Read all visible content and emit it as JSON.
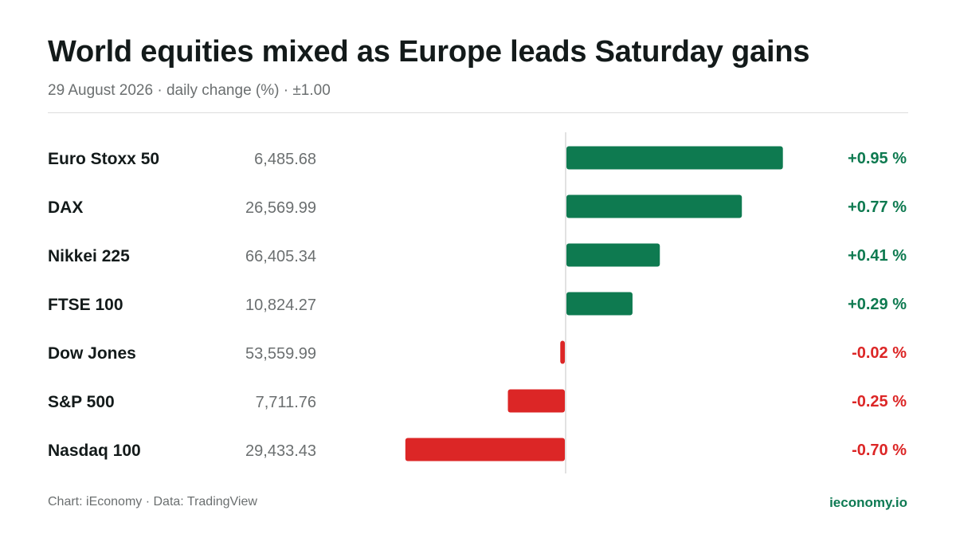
{
  "header": {
    "title": "World equities mixed as Europe leads Saturday gains",
    "subtitle": "29 August 2026 · daily change (%) · ±1.00"
  },
  "footer": {
    "source": "Chart: iEconomy · Data: TradingView",
    "brand": "ieconomy.io"
  },
  "colors": {
    "positive": "#0e7a50",
    "negative": "#dc2626",
    "text": "#131a1a",
    "muted": "#6b6f70",
    "axis": "#d9d9d9"
  },
  "chart_data": {
    "type": "bar",
    "orientation": "horizontal",
    "xlim": [
      -1.0,
      1.0
    ],
    "unit": "%",
    "rows": [
      {
        "name": "Euro Stoxx 50",
        "level": "6,485.68",
        "change": 0.95,
        "label": "+0.95 %"
      },
      {
        "name": "DAX",
        "level": "26,569.99",
        "change": 0.77,
        "label": "+0.77 %"
      },
      {
        "name": "Nikkei 225",
        "level": "66,405.34",
        "change": 0.41,
        "label": "+0.41 %"
      },
      {
        "name": "FTSE 100",
        "level": "10,824.27",
        "change": 0.29,
        "label": "+0.29 %"
      },
      {
        "name": "Dow Jones",
        "level": "53,559.99",
        "change": -0.02,
        "label": "-0.02 %"
      },
      {
        "name": "S&P 500",
        "level": "7,711.76",
        "change": -0.25,
        "label": "-0.25 %"
      },
      {
        "name": "Nasdaq 100",
        "level": "29,433.43",
        "change": -0.7,
        "label": "-0.70 %"
      }
    ]
  }
}
